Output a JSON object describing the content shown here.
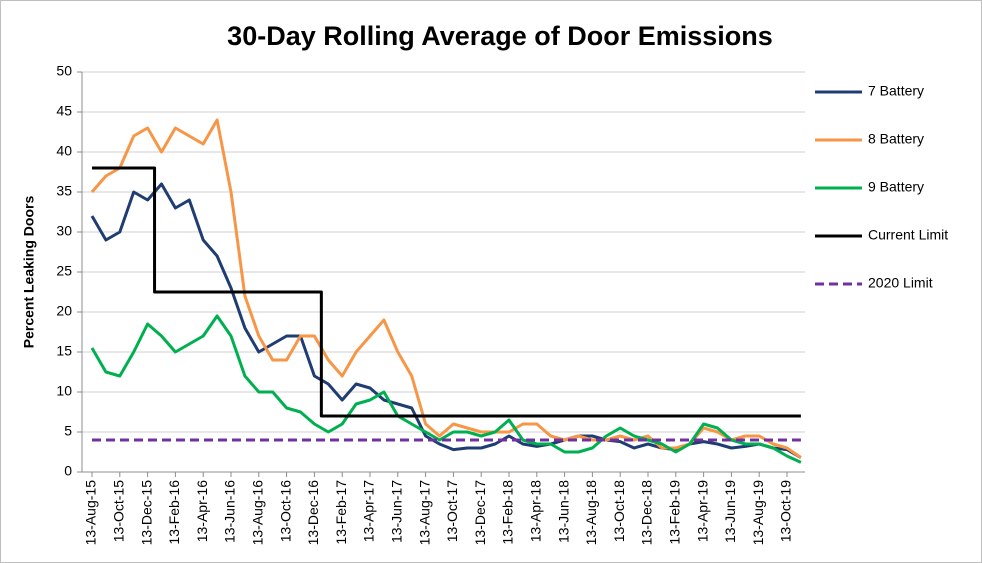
{
  "chart_data": {
    "type": "line",
    "title": "30-Day Rolling Average of Door Emissions",
    "y_label": "Percent Leaking Doors",
    "categories": [
      "13-Aug-15",
      null,
      "13-Oct-15",
      null,
      "13-Dec-15",
      null,
      "13-Feb-16",
      null,
      "13-Apr-16",
      null,
      "13-Jun-16",
      null,
      "13-Aug-16",
      null,
      "13-Oct-16",
      null,
      "13-Dec-16",
      null,
      "13-Feb-17",
      null,
      "13-Apr-17",
      null,
      "13-Jun-17",
      null,
      "13-Aug-17",
      null,
      "13-Oct-17",
      null,
      "13-Dec-17",
      null,
      "13-Feb-18",
      null,
      "13-Apr-18",
      null,
      "13-Jun-18",
      null,
      "13-Aug-18",
      null,
      "13-Oct-18",
      null,
      "13-Dec-18",
      null,
      "13-Feb-19",
      null,
      "13-Apr-19",
      null,
      "13-Jun-19",
      null,
      "13-Aug-19",
      null,
      "13-Oct-19",
      null
    ],
    "ylim": [
      0,
      50
    ],
    "yticks": [
      0,
      5,
      10,
      15,
      20,
      25,
      30,
      35,
      40,
      45,
      50
    ],
    "grid": true,
    "legend": "right",
    "series": [
      {
        "name": "7 Battery",
        "color": "#1f3d73",
        "values": [
          32,
          29,
          30,
          35,
          34,
          36,
          33,
          34,
          29,
          27,
          23,
          18,
          15,
          16,
          17,
          17,
          12,
          11,
          9,
          11,
          10.5,
          9,
          8.5,
          8,
          4.5,
          3.5,
          2.8,
          3,
          3,
          3.5,
          4.5,
          3.5,
          3.2,
          3.5,
          4,
          4.5,
          4.5,
          4,
          3.8,
          3,
          3.5,
          3,
          2.8,
          3.5,
          3.8,
          3.5,
          3,
          3.2,
          3.5,
          3,
          2.8,
          1.8
        ]
      },
      {
        "name": "8 Battery",
        "color": "#f79646",
        "values": [
          35,
          37,
          38,
          42,
          43,
          40,
          43,
          42,
          41,
          44,
          35,
          22,
          17,
          14,
          14,
          17,
          17,
          14,
          12,
          15,
          17,
          19,
          15,
          12,
          6,
          4.5,
          6,
          5.5,
          5,
          5,
          5,
          6,
          6,
          4.5,
          4,
          4.5,
          4,
          4,
          4.5,
          4,
          4.5,
          3,
          3,
          3.5,
          5.5,
          5,
          4,
          4.5,
          4.5,
          3.5,
          3,
          1.8
        ]
      },
      {
        "name": "9 Battery",
        "color": "#00b050",
        "values": [
          15.5,
          12.5,
          12,
          15,
          18.5,
          17,
          15,
          16,
          17,
          19.5,
          17,
          12,
          10,
          10,
          8,
          7.5,
          6,
          5,
          6,
          8.5,
          9,
          10,
          7,
          6,
          5,
          4,
          5,
          5,
          4.5,
          5,
          6.5,
          4,
          3.5,
          3.5,
          2.5,
          2.5,
          3,
          4.5,
          5.5,
          4.5,
          4,
          3.5,
          2.5,
          3.5,
          6,
          5.5,
          4,
          3.5,
          3.5,
          3,
          2,
          1.2
        ]
      },
      {
        "name": "Current Limit",
        "color": "#000000",
        "step": true,
        "values": [
          38,
          38,
          38,
          38,
          38,
          22.5,
          22.5,
          22.5,
          22.5,
          22.5,
          22.5,
          22.5,
          22.5,
          22.5,
          22.5,
          22.5,
          22.5,
          7,
          7,
          7,
          7,
          7,
          7,
          7,
          7,
          7,
          7,
          7,
          7,
          7,
          7,
          7,
          7,
          7,
          7,
          7,
          7,
          7,
          7,
          7,
          7,
          7,
          7,
          7,
          7,
          7,
          7,
          7,
          7,
          7,
          7,
          7
        ]
      },
      {
        "name": "2020 Limit",
        "color": "#7030a0",
        "dashed": true,
        "values": [
          4,
          4,
          4,
          4,
          4,
          4,
          4,
          4,
          4,
          4,
          4,
          4,
          4,
          4,
          4,
          4,
          4,
          4,
          4,
          4,
          4,
          4,
          4,
          4,
          4,
          4,
          4,
          4,
          4,
          4,
          4,
          4,
          4,
          4,
          4,
          4,
          4,
          4,
          4,
          4,
          4,
          4,
          4,
          4,
          4,
          4,
          4,
          4,
          4,
          4,
          4,
          4
        ]
      }
    ]
  }
}
